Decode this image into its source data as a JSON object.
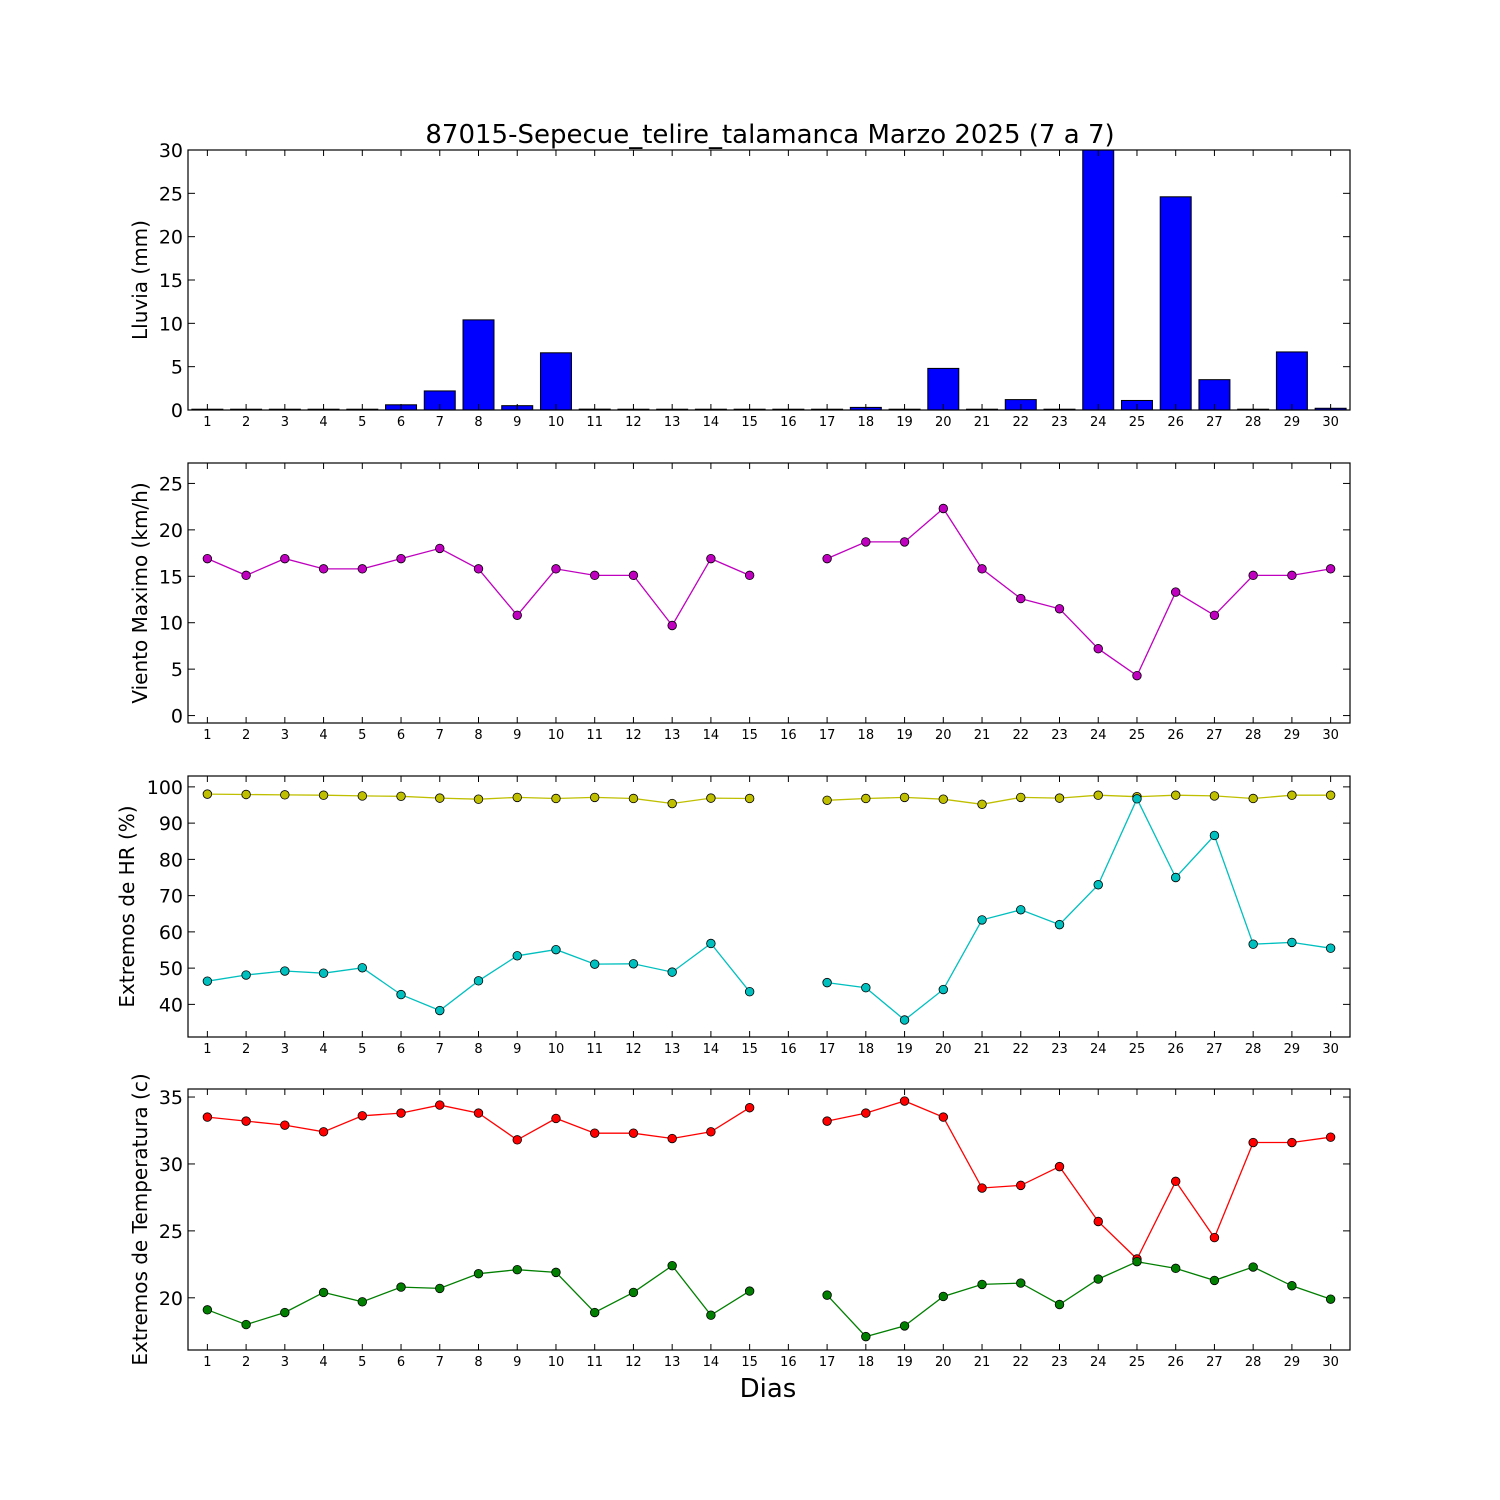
{
  "chart_data": {
    "title": "87015-Sepecue_telire_talamanca Marzo 2025  (7 a 7)",
    "xlabel": "Dias",
    "days": [
      1,
      2,
      3,
      4,
      5,
      6,
      7,
      8,
      9,
      10,
      11,
      12,
      13,
      14,
      15,
      16,
      17,
      18,
      19,
      20,
      21,
      22,
      23,
      24,
      25,
      26,
      27,
      28,
      29,
      30
    ],
    "panels": [
      {
        "type": "bar",
        "ylabel": "Lluvia (mm)",
        "ylim": [
          0,
          30
        ],
        "yticks": [
          0,
          5,
          10,
          15,
          20,
          25,
          30
        ],
        "series": [
          {
            "color": "#0000ff",
            "values": [
              0,
              0,
              0,
              0,
              0,
              0.6,
              2.2,
              10.4,
              0.5,
              6.6,
              0.1,
              0,
              0,
              0,
              0,
              0,
              0,
              0.3,
              0,
              4.8,
              0,
              1.2,
              0,
              30,
              1.1,
              24.6,
              3.5,
              0,
              6.7,
              0.2
            ]
          }
        ]
      },
      {
        "type": "line",
        "ylabel": "Viento Maximo (km/h)",
        "ylim": [
          -0.8,
          27.2
        ],
        "yticks": [
          0,
          5,
          10,
          15,
          20,
          25
        ],
        "series": [
          {
            "color": "#bf00bf",
            "values": [
              16.9,
              15.1,
              16.9,
              15.8,
              15.8,
              16.9,
              18.0,
              15.8,
              10.8,
              15.8,
              15.1,
              15.1,
              9.7,
              16.9,
              15.1,
              null,
              16.9,
              18.7,
              18.7,
              22.3,
              15.8,
              12.6,
              11.5,
              7.2,
              4.3,
              13.3,
              10.8,
              15.1,
              15.1,
              15.8
            ]
          }
        ]
      },
      {
        "type": "line",
        "ylabel": "Extremos de HR (%)",
        "ylim": [
          31,
          103
        ],
        "yticks": [
          40,
          50,
          60,
          70,
          80,
          90,
          100
        ],
        "series": [
          {
            "color": "#bfbf00",
            "values": [
              98.0,
              97.9,
              97.8,
              97.7,
              97.5,
              97.4,
              96.9,
              96.6,
              97.1,
              96.8,
              97.1,
              96.8,
              95.4,
              96.9,
              96.8,
              null,
              96.3,
              96.8,
              97.1,
              96.6,
              95.2,
              97.1,
              96.9,
              97.7,
              97.3,
              97.7,
              97.5,
              96.8,
              97.7,
              97.7
            ]
          },
          {
            "color": "#00bfbf",
            "values": [
              46.4,
              48.1,
              49.2,
              48.6,
              50.1,
              42.7,
              38.3,
              46.5,
              53.4,
              55.1,
              51.1,
              51.2,
              48.9,
              56.8,
              43.5,
              null,
              46.0,
              44.6,
              35.7,
              44.1,
              63.3,
              66.1,
              62.0,
              73.0,
              96.7,
              75.0,
              86.6,
              56.6,
              57.1,
              55.5
            ]
          }
        ]
      },
      {
        "type": "line",
        "ylabel": "Extremos de Temperatura (c)",
        "ylim": [
          16.1,
          35.6
        ],
        "yticks": [
          20,
          25,
          30,
          35
        ],
        "series": [
          {
            "color": "#ff0000",
            "values": [
              33.5,
              33.2,
              32.9,
              32.4,
              33.6,
              33.8,
              34.4,
              33.8,
              31.8,
              33.4,
              32.3,
              32.3,
              31.9,
              32.4,
              34.2,
              null,
              33.2,
              33.8,
              34.7,
              33.5,
              28.2,
              28.4,
              29.8,
              25.7,
              22.9,
              28.7,
              24.5,
              31.6,
              31.6,
              32.0
            ]
          },
          {
            "color": "#007f00",
            "values": [
              19.1,
              18.0,
              18.9,
              20.4,
              19.7,
              20.8,
              20.7,
              21.8,
              22.1,
              21.9,
              18.9,
              20.4,
              22.4,
              18.7,
              20.5,
              null,
              20.2,
              17.1,
              17.9,
              20.1,
              21.0,
              21.1,
              19.5,
              21.4,
              22.7,
              22.2,
              21.3,
              22.3,
              20.9,
              19.9
            ]
          }
        ]
      }
    ]
  }
}
